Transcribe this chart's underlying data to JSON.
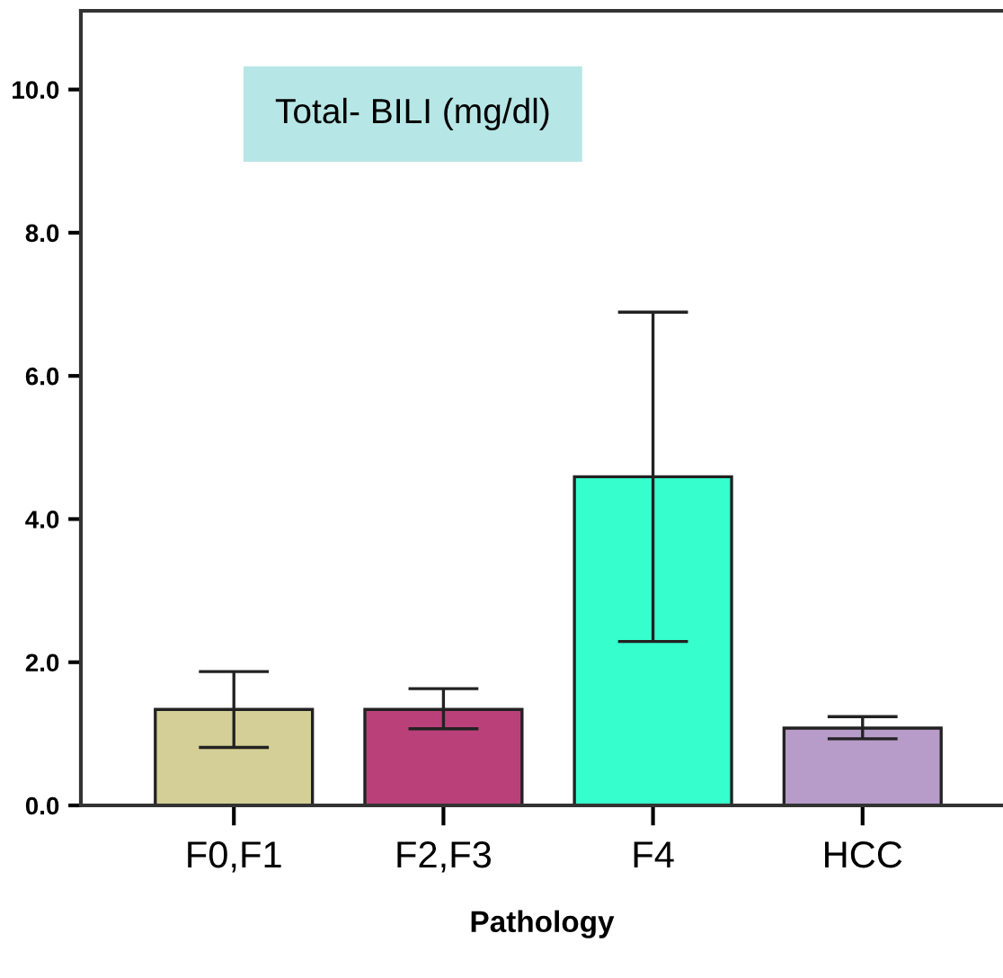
{
  "chart_data": {
    "type": "bar",
    "title": "Total- BILI (mg/dl)",
    "xlabel": "Pathology",
    "categories": [
      "F0,F1",
      "F2,F3",
      "F4",
      "HCC"
    ],
    "values": [
      1.34,
      1.34,
      4.59,
      1.08
    ],
    "colors": [
      "#d3cf96",
      "#b94079",
      "#36fecc",
      "#b79bc8"
    ],
    "errors": [
      [
        0.81,
        1.87
      ],
      [
        1.07,
        1.63
      ],
      [
        2.29,
        6.89
      ],
      [
        0.93,
        1.24
      ]
    ],
    "ylim": [
      0,
      11.1
    ],
    "yticks": [
      {
        "value": 0,
        "label": "0.0"
      },
      {
        "value": 2,
        "label": "2.0"
      },
      {
        "value": 4,
        "label": "4.0"
      },
      {
        "value": 6,
        "label": "6.0"
      },
      {
        "value": 8,
        "label": "8.0"
      },
      {
        "value": 10,
        "label": "10.0"
      }
    ],
    "grid": false,
    "legend": false
  }
}
